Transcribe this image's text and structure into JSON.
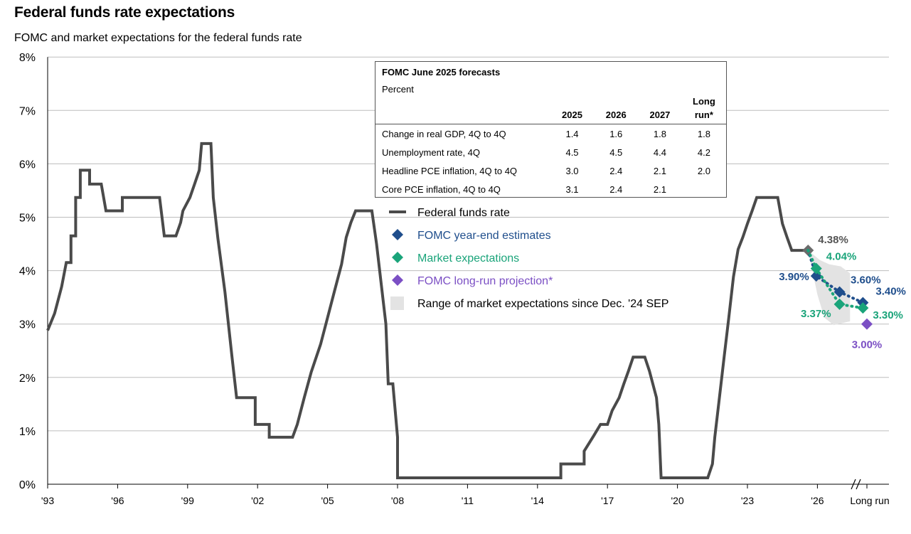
{
  "title": "Federal funds rate expectations",
  "subtitle": "FOMC and market expectations for the federal funds rate",
  "colors": {
    "ffr_line": "#4a4a4a",
    "fomc": "#1f4e8c",
    "market": "#1aa47a",
    "longrun": "#7b4fc4",
    "range": "#e3e3e3",
    "last_point": "#6b6b6b"
  },
  "table": {
    "title": "FOMC June 2025 forecasts",
    "subtitle": "Percent",
    "columns": [
      "2025",
      "2026",
      "2027",
      "Long run*"
    ],
    "rows": [
      {
        "label": "Change in real GDP, 4Q to 4Q",
        "values": [
          "1.4",
          "1.6",
          "1.8",
          "1.8"
        ]
      },
      {
        "label": "Unemployment rate, 4Q",
        "values": [
          "4.5",
          "4.5",
          "4.4",
          "4.2"
        ]
      },
      {
        "label": "Headline PCE inflation, 4Q to 4Q",
        "values": [
          "3.0",
          "2.4",
          "2.1",
          "2.0"
        ]
      },
      {
        "label": "Core PCE inflation, 4Q to 4Q",
        "values": [
          "3.1",
          "2.4",
          "2.1",
          ""
        ]
      }
    ]
  },
  "legend": [
    {
      "label": "Federal funds rate",
      "marker": "line",
      "color": "#4a4a4a"
    },
    {
      "label": "FOMC year-end estimates",
      "marker": "diamond",
      "color": "#1f4e8c"
    },
    {
      "label": "Market expectations",
      "marker": "diamond",
      "color": "#1aa47a"
    },
    {
      "label": "FOMC long-run projection*",
      "marker": "diamond",
      "color": "#7b4fc4"
    },
    {
      "label": "Range of market expectations since Dec. '24 SEP",
      "marker": "square",
      "color": "#e3e3e3"
    }
  ],
  "chart_data": {
    "type": "line",
    "ylim": [
      0,
      8
    ],
    "yticks": [
      0,
      1,
      2,
      3,
      4,
      5,
      6,
      7,
      8
    ],
    "ytick_labels": [
      "0%",
      "1%",
      "2%",
      "3%",
      "4%",
      "5%",
      "6%",
      "7%",
      "8%"
    ],
    "xticks": [
      1993,
      1996,
      1999,
      2002,
      2005,
      2008,
      2011,
      2014,
      2017,
      2020,
      2023,
      2026
    ],
    "xtick_labels": [
      "'93",
      "'96",
      "'99",
      "'02",
      "'05",
      "'08",
      "'11",
      "'14",
      "'17",
      "'20",
      "'23",
      "'26"
    ],
    "longrun_label": "Long run",
    "fed_funds_rate": [
      [
        1993.0,
        2.88
      ],
      [
        1993.3,
        3.2
      ],
      [
        1993.6,
        3.7
      ],
      [
        1993.8,
        4.15
      ],
      [
        1994.0,
        4.15
      ],
      [
        1994.0,
        4.65
      ],
      [
        1994.2,
        4.65
      ],
      [
        1994.2,
        5.37
      ],
      [
        1994.4,
        5.37
      ],
      [
        1994.4,
        5.88
      ],
      [
        1994.8,
        5.88
      ],
      [
        1994.8,
        5.62
      ],
      [
        1995.3,
        5.62
      ],
      [
        1995.5,
        5.12
      ],
      [
        1996.2,
        5.12
      ],
      [
        1996.2,
        5.37
      ],
      [
        1997.8,
        5.37
      ],
      [
        1998.0,
        4.65
      ],
      [
        1998.5,
        4.65
      ],
      [
        1998.7,
        4.9
      ],
      [
        1998.8,
        5.12
      ],
      [
        1999.1,
        5.37
      ],
      [
        1999.3,
        5.62
      ],
      [
        1999.5,
        5.88
      ],
      [
        1999.6,
        6.38
      ],
      [
        2000.0,
        6.38
      ],
      [
        2000.1,
        5.37
      ],
      [
        2000.3,
        4.6
      ],
      [
        2000.6,
        3.6
      ],
      [
        2000.9,
        2.4
      ],
      [
        2001.1,
        1.62
      ],
      [
        2001.5,
        1.62
      ],
      [
        2001.9,
        1.62
      ],
      [
        2001.9,
        1.12
      ],
      [
        2002.5,
        1.12
      ],
      [
        2002.5,
        0.88
      ],
      [
        2003.5,
        0.88
      ],
      [
        2003.7,
        1.12
      ],
      [
        2004.0,
        1.62
      ],
      [
        2004.3,
        2.1
      ],
      [
        2004.7,
        2.62
      ],
      [
        2005.0,
        3.12
      ],
      [
        2005.3,
        3.62
      ],
      [
        2005.6,
        4.12
      ],
      [
        2005.8,
        4.62
      ],
      [
        2006.0,
        4.9
      ],
      [
        2006.2,
        5.12
      ],
      [
        2006.9,
        5.12
      ],
      [
        2007.1,
        4.5
      ],
      [
        2007.5,
        3.0
      ],
      [
        2007.6,
        1.88
      ],
      [
        2007.8,
        1.88
      ],
      [
        2008.0,
        0.88
      ],
      [
        2008.0,
        0.12
      ],
      [
        2015.0,
        0.12
      ],
      [
        2015.0,
        0.38
      ],
      [
        2016.0,
        0.38
      ],
      [
        2016.0,
        0.62
      ],
      [
        2016.4,
        0.9
      ],
      [
        2016.7,
        1.12
      ],
      [
        2017.0,
        1.12
      ],
      [
        2017.2,
        1.38
      ],
      [
        2017.5,
        1.62
      ],
      [
        2017.7,
        1.88
      ],
      [
        2017.9,
        2.12
      ],
      [
        2018.1,
        2.38
      ],
      [
        2018.6,
        2.38
      ],
      [
        2018.8,
        2.12
      ],
      [
        2019.1,
        1.62
      ],
      [
        2019.2,
        1.12
      ],
      [
        2019.3,
        0.12
      ],
      [
        2021.3,
        0.12
      ],
      [
        2021.5,
        0.38
      ],
      [
        2021.6,
        0.88
      ],
      [
        2021.8,
        1.62
      ],
      [
        2022.0,
        2.38
      ],
      [
        2022.2,
        3.12
      ],
      [
        2022.4,
        3.88
      ],
      [
        2022.6,
        4.4
      ],
      [
        2022.8,
        4.62
      ],
      [
        2023.0,
        4.88
      ],
      [
        2023.2,
        5.12
      ],
      [
        2023.4,
        5.37
      ],
      [
        2024.3,
        5.37
      ],
      [
        2024.5,
        4.88
      ],
      [
        2024.7,
        4.62
      ],
      [
        2024.9,
        4.38
      ],
      [
        2025.6,
        4.38
      ]
    ],
    "last_point": {
      "x": 2025.6,
      "y": 4.38,
      "label": "4.38%"
    },
    "fomc_estimates": [
      {
        "x": 2025.95,
        "y": 3.9,
        "label": "3.90%"
      },
      {
        "x": 2026.95,
        "y": 3.6,
        "label": "3.60%"
      },
      {
        "x": 2027.95,
        "y": 3.4,
        "label": "3.40%"
      }
    ],
    "market_expectations": [
      {
        "x": 2025.95,
        "y": 4.04,
        "label": "4.04%"
      },
      {
        "x": 2026.95,
        "y": 3.37,
        "label": "3.37%"
      },
      {
        "x": 2027.95,
        "y": 3.3,
        "label": "3.30%"
      }
    ],
    "longrun_projection": {
      "y": 3.0,
      "label": "3.00%"
    },
    "market_range": {
      "upper": [
        [
          2025.6,
          4.38
        ],
        [
          2026.1,
          4.2
        ],
        [
          2026.5,
          4.12
        ],
        [
          2027.0,
          4.08
        ],
        [
          2027.4,
          3.95
        ]
      ],
      "lower": [
        [
          2025.6,
          4.38
        ],
        [
          2026.0,
          3.55
        ],
        [
          2026.3,
          3.12
        ],
        [
          2026.7,
          2.98
        ],
        [
          2027.4,
          3.05
        ]
      ]
    }
  }
}
